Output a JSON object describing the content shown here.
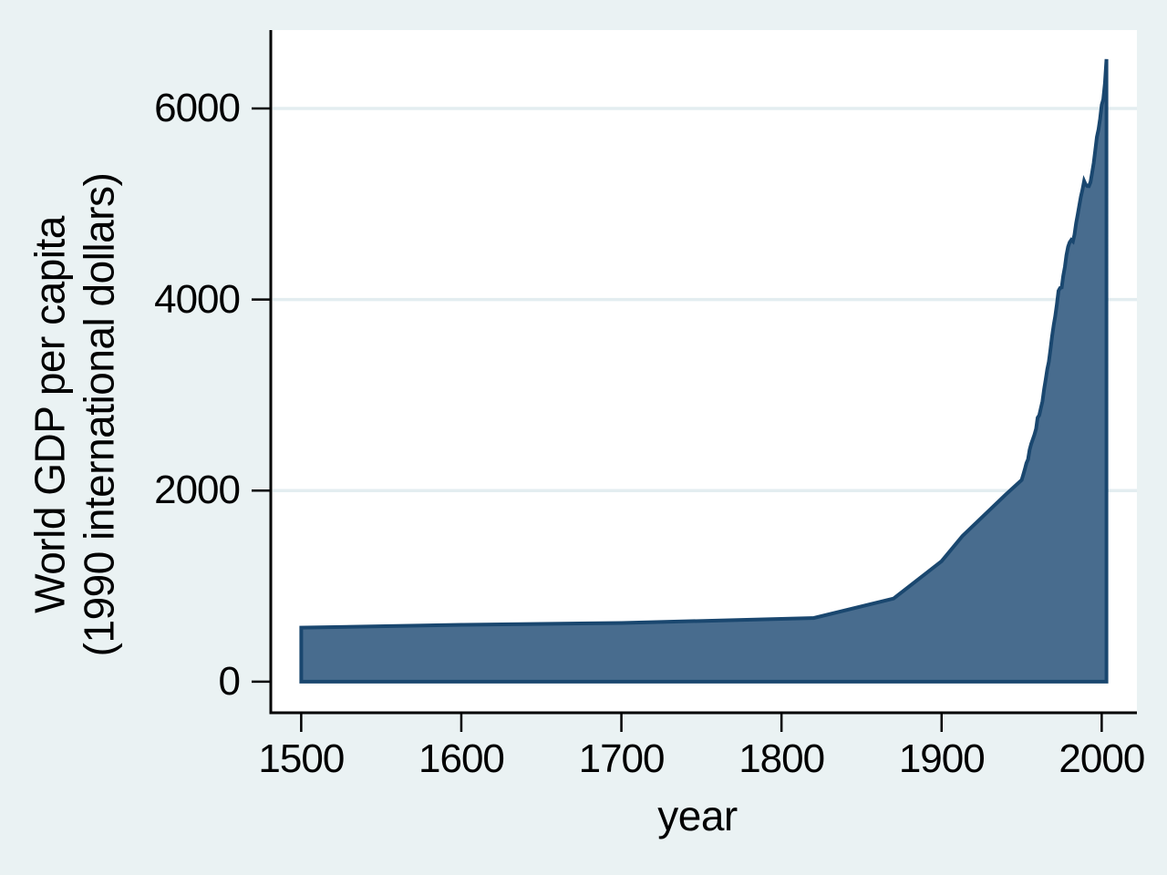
{
  "chart_data": {
    "type": "area",
    "title": "",
    "xlabel": "year",
    "ylabel": "World GDP per capita (1990 international dollars)",
    "ylabel_lines": [
      "World GDP per capita",
      "(1990 international dollars)"
    ],
    "x_ticks": [
      1500,
      1600,
      1700,
      1800,
      1900,
      2000
    ],
    "y_ticks": [
      0,
      2000,
      4000,
      6000
    ],
    "xlim": [
      1481,
      2022
    ],
    "ylim": [
      -325,
      6820
    ],
    "grid": "horizontal",
    "legend": "none",
    "series": [
      {
        "name": "World GDP per capita (1990 international dollars)",
        "points": [
          [
            1500,
            566
          ],
          [
            1600,
            596
          ],
          [
            1700,
            615
          ],
          [
            1820,
            666
          ],
          [
            1870,
            870
          ],
          [
            1900,
            1261
          ],
          [
            1913,
            1525
          ],
          [
            1940,
            1958
          ],
          [
            1950,
            2111
          ],
          [
            1951,
            2165
          ],
          [
            1952,
            2225
          ],
          [
            1953,
            2288
          ],
          [
            1954,
            2327
          ],
          [
            1955,
            2427
          ],
          [
            1956,
            2490
          ],
          [
            1957,
            2539
          ],
          [
            1958,
            2585
          ],
          [
            1959,
            2646
          ],
          [
            1960,
            2764
          ],
          [
            1961,
            2789
          ],
          [
            1962,
            2861
          ],
          [
            1963,
            2935
          ],
          [
            1964,
            3061
          ],
          [
            1965,
            3160
          ],
          [
            1966,
            3271
          ],
          [
            1967,
            3349
          ],
          [
            1968,
            3479
          ],
          [
            1969,
            3612
          ],
          [
            1970,
            3731
          ],
          [
            1971,
            3825
          ],
          [
            1972,
            3949
          ],
          [
            1973,
            4091
          ],
          [
            1974,
            4120
          ],
          [
            1975,
            4126
          ],
          [
            1976,
            4248
          ],
          [
            1977,
            4342
          ],
          [
            1978,
            4465
          ],
          [
            1979,
            4552
          ],
          [
            1980,
            4598
          ],
          [
            1981,
            4623
          ],
          [
            1982,
            4608
          ],
          [
            1983,
            4677
          ],
          [
            1984,
            4799
          ],
          [
            1985,
            4886
          ],
          [
            1986,
            4984
          ],
          [
            1987,
            5075
          ],
          [
            1988,
            5150
          ],
          [
            1989,
            5240
          ],
          [
            1990,
            5204
          ],
          [
            1991,
            5187
          ],
          [
            1992,
            5186
          ],
          [
            1993,
            5229
          ],
          [
            1994,
            5324
          ],
          [
            1995,
            5428
          ],
          [
            1996,
            5560
          ],
          [
            1997,
            5702
          ],
          [
            1998,
            5781
          ],
          [
            1999,
            5891
          ],
          [
            2000,
            6038
          ],
          [
            2001,
            6095
          ],
          [
            2002,
            6262
          ],
          [
            2003,
            6516
          ]
        ]
      }
    ],
    "colors": {
      "background": "#eaf2f3",
      "plot_background": "#ffffff",
      "gridline": "#e3edf0",
      "area_fill": "#486c8e",
      "area_stroke": "#1a476f",
      "axis_line": "#000000",
      "text": "#000000"
    }
  }
}
